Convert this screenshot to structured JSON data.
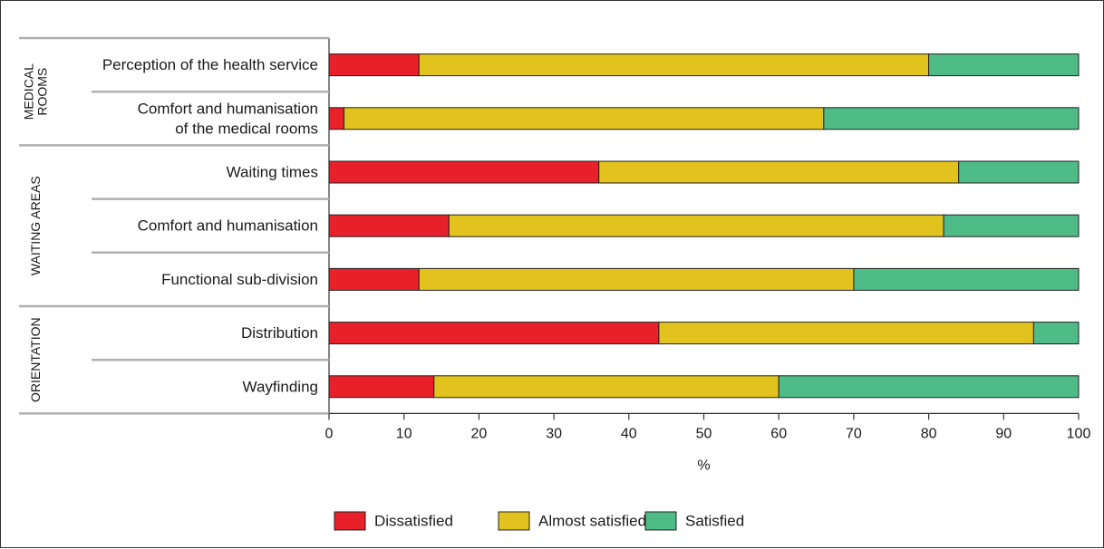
{
  "chart_data": {
    "type": "bar",
    "stacked": true,
    "orientation": "horizontal",
    "categories": [
      "Perception of the health service",
      "Comfort and humanisation of the medical rooms",
      "Waiting times",
      "Comfort and humanisation",
      "Functional sub-division",
      "Distribution",
      "Wayfinding"
    ],
    "category_lines": [
      [
        "Perception of the health service"
      ],
      [
        "Comfort and humanisation",
        "of the medical rooms"
      ],
      [
        "Waiting times"
      ],
      [
        "Comfort and humanisation"
      ],
      [
        "Functional sub-division"
      ],
      [
        "Distribution"
      ],
      [
        "Wayfinding"
      ]
    ],
    "groups": [
      {
        "lines": [
          "MEDICAL",
          "ROOMS"
        ],
        "start": 0,
        "end": 1
      },
      {
        "lines": [
          "WAITING AREAS"
        ],
        "start": 2,
        "end": 4
      },
      {
        "lines": [
          "ORIENTATION"
        ],
        "start": 5,
        "end": 6
      }
    ],
    "series": [
      {
        "name": "Dissatisfied",
        "color": "#e8202a",
        "values": [
          12,
          2,
          36,
          16,
          12,
          44,
          14
        ]
      },
      {
        "name": "Almost satisfied",
        "color": "#e2c21c",
        "values": [
          68,
          64,
          48,
          66,
          58,
          50,
          46
        ]
      },
      {
        "name": "Satisfied",
        "color": "#4fbb87",
        "values": [
          20,
          34,
          16,
          18,
          30,
          6,
          40
        ]
      }
    ],
    "xlabel": "%",
    "xlim": [
      0,
      100
    ],
    "xticks": [
      0,
      10,
      20,
      30,
      40,
      50,
      60,
      70,
      80,
      90,
      100
    ],
    "legend_position": "bottom"
  }
}
